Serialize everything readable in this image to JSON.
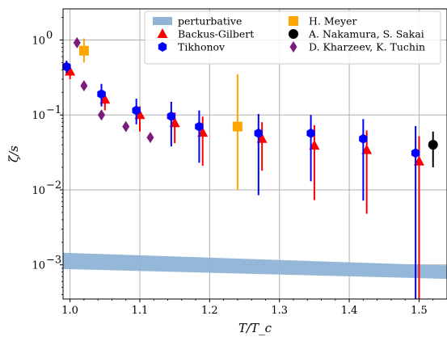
{
  "chart_data": {
    "type": "scatter",
    "xlabel": "T/T_c",
    "ylabel": "ζ/s",
    "xlim": [
      0.99,
      1.54
    ],
    "ylim": [
      0.00035,
      2.6
    ],
    "yscale": "log",
    "grid": true,
    "legend_position": "top-right",
    "legend_columns": 2,
    "x_ticks": [
      1.0,
      1.1,
      1.2,
      1.3,
      1.4,
      1.5
    ],
    "x_tick_labels": [
      "1.0",
      "1.1",
      "1.2",
      "1.3",
      "1.4",
      "1.5"
    ],
    "y_ticks": [
      0.001,
      0.01,
      0.1,
      1
    ],
    "y_tick_labels": [
      "10",
      "10",
      "10",
      "10"
    ],
    "y_tick_exponents": [
      "−3",
      "−2",
      "−1",
      "0"
    ],
    "series": [
      {
        "name": "perturbative",
        "kind": "band",
        "color": "#8fb4d6",
        "x": [
          0.99,
          1.54
        ],
        "lower": [
          0.00088,
          0.00065
        ],
        "upper": [
          0.00145,
          0.00098
        ]
      },
      {
        "name": "Backus-Gilbert",
        "kind": "errorbar",
        "marker": "triangle",
        "color": "#ff0000",
        "points": [
          {
            "x": 1.0,
            "y": 0.38,
            "lo": 0.3,
            "hi": 0.47
          },
          {
            "x": 1.05,
            "y": 0.16,
            "lo": 0.115,
            "hi": 0.2
          },
          {
            "x": 1.1,
            "y": 0.1,
            "lo": 0.06,
            "hi": 0.13
          },
          {
            "x": 1.15,
            "y": 0.078,
            "lo": 0.042,
            "hi": 0.108
          },
          {
            "x": 1.19,
            "y": 0.058,
            "lo": 0.021,
            "hi": 0.095
          },
          {
            "x": 1.275,
            "y": 0.048,
            "lo": 0.018,
            "hi": 0.08
          },
          {
            "x": 1.35,
            "y": 0.039,
            "lo": 0.0073,
            "hi": 0.073
          },
          {
            "x": 1.425,
            "y": 0.034,
            "lo": 0.0048,
            "hi": 0.062
          },
          {
            "x": 1.5,
            "y": 0.024,
            "lo": 0.0003,
            "hi": 0.052
          }
        ]
      },
      {
        "name": "Tikhonov",
        "kind": "errorbar",
        "marker": "hexagon",
        "color": "#0000ff",
        "points": [
          {
            "x": 0.995,
            "y": 0.44,
            "lo": 0.36,
            "hi": 0.53
          },
          {
            "x": 1.045,
            "y": 0.19,
            "lo": 0.13,
            "hi": 0.26
          },
          {
            "x": 1.095,
            "y": 0.115,
            "lo": 0.075,
            "hi": 0.165
          },
          {
            "x": 1.145,
            "y": 0.096,
            "lo": 0.038,
            "hi": 0.15
          },
          {
            "x": 1.185,
            "y": 0.07,
            "lo": 0.023,
            "hi": 0.115
          },
          {
            "x": 1.27,
            "y": 0.057,
            "lo": 0.0085,
            "hi": 0.103
          },
          {
            "x": 1.345,
            "y": 0.057,
            "lo": 0.013,
            "hi": 0.1
          },
          {
            "x": 1.42,
            "y": 0.048,
            "lo": 0.0072,
            "hi": 0.088
          },
          {
            "x": 1.495,
            "y": 0.031,
            "lo": 0.0003,
            "hi": 0.071
          }
        ]
      },
      {
        "name": "H. Meyer",
        "kind": "errorbar",
        "marker": "square",
        "color": "#ffa500",
        "points": [
          {
            "x": 1.02,
            "y": 0.72,
            "lo": 0.5,
            "hi": 1.05
          },
          {
            "x": 1.24,
            "y": 0.07,
            "lo": 0.01,
            "hi": 0.35
          }
        ]
      },
      {
        "name": "A. Nakamura, S. Sakai",
        "kind": "errorbar",
        "marker": "circle",
        "color": "#000000",
        "points": [
          {
            "x": 1.52,
            "y": 0.04,
            "lo": 0.02,
            "hi": 0.06
          }
        ]
      },
      {
        "name": "D. Kharzeev, K. Tuchin",
        "kind": "scatter",
        "marker": "diamond",
        "color": "#7b1b7b",
        "points": [
          {
            "x": 1.01,
            "y": 0.92
          },
          {
            "x": 1.02,
            "y": 0.245
          },
          {
            "x": 1.045,
            "y": 0.1
          },
          {
            "x": 1.08,
            "y": 0.07
          },
          {
            "x": 1.115,
            "y": 0.05
          }
        ]
      }
    ]
  }
}
